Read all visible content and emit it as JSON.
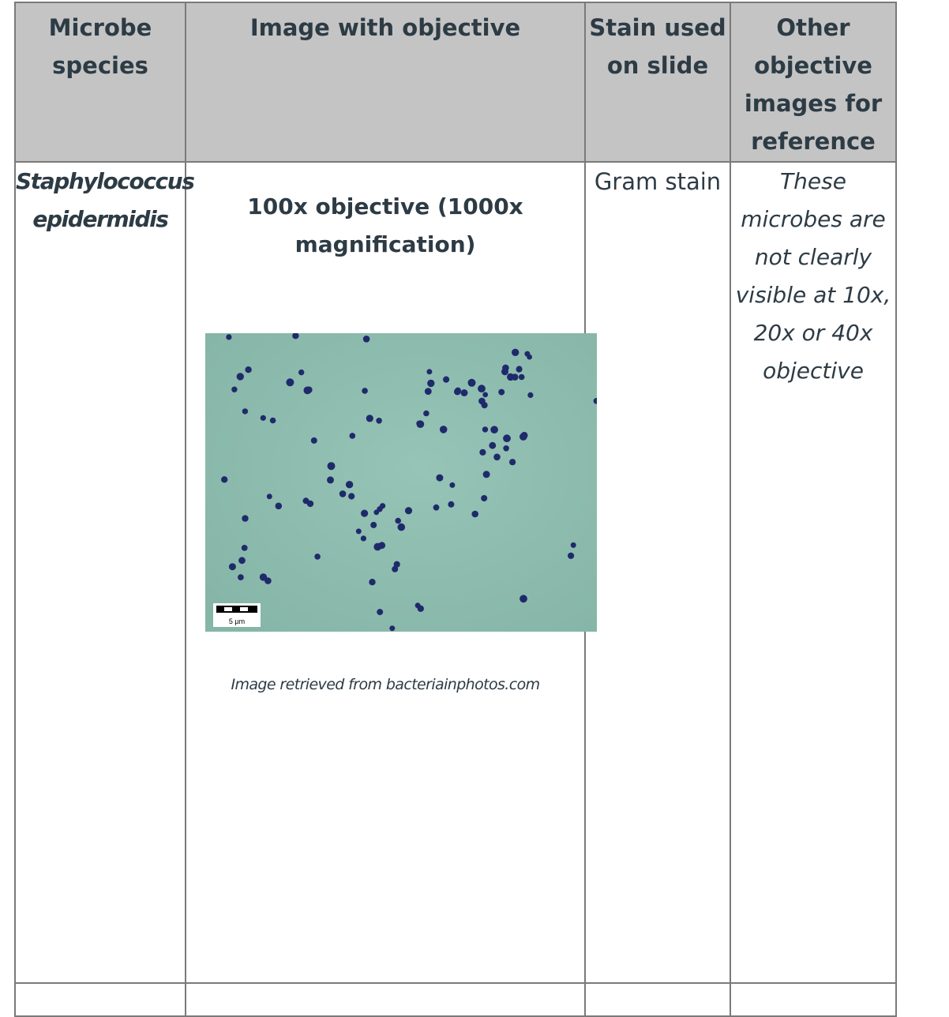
{
  "table": {
    "headers": [
      "Microbe\nspecies",
      "Image with objective",
      "Stain used\non slide",
      "Other\nobjective\nimages for\nreference"
    ],
    "row": {
      "species_line1": "Staphylococcus",
      "species_line2": "epidermidis",
      "objective_title": "100x objective (1000x magnification)",
      "scale_bar_label": "5 µm",
      "image_caption": "Image retrieved from bacteriainphotos.com",
      "stain": "Gram stain",
      "note_lines": [
        "These",
        "microbes are",
        "not clearly",
        "visible at 10x,",
        "20x or 40x",
        "objective"
      ]
    }
  },
  "colors": {
    "header_bg": "#c4c4c4",
    "slide_bg": "#8dbcaf",
    "cell_stain": "#1f2a6b",
    "text": "#2d3b45"
  }
}
